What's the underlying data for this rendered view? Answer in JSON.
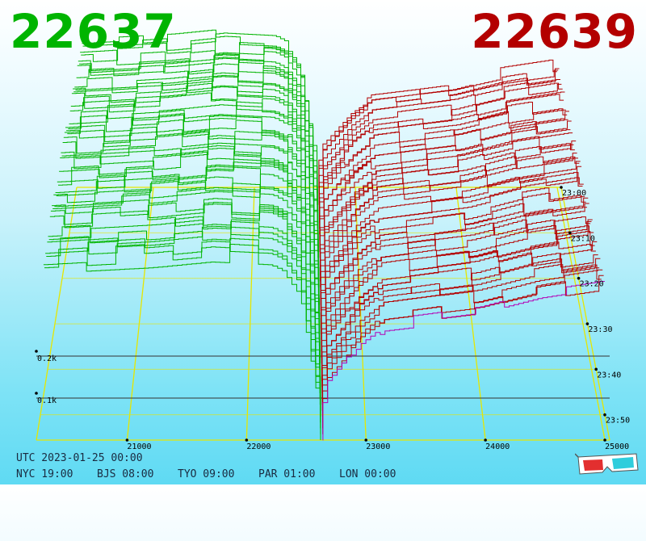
{
  "bid_price": "22637",
  "ask_price": "22639",
  "colors": {
    "bid": "#00b400",
    "ask": "#b30000",
    "grid": "#e6e600",
    "axis": "#000000",
    "recent": "#b400b4"
  },
  "chart_data": {
    "type": "3d-depth-chart",
    "title": "",
    "price_axis": {
      "min": 20240,
      "max": 25040,
      "ticks": [
        21000,
        22000,
        23000,
        24000,
        25000
      ]
    },
    "time_axis": {
      "labels": [
        "23:00",
        "23:10",
        "23:20",
        "23:30",
        "23:40",
        "23:50"
      ]
    },
    "volume_axis": {
      "unit": "k",
      "ticks": [
        0.1,
        0.2
      ],
      "labels": [
        "0.1k",
        "0.2k"
      ]
    },
    "mid_price": 22638,
    "snapshots": 44,
    "bid_profile": {
      "series": "bid",
      "points": [
        [
          20300,
          0.58
        ],
        [
          21200,
          0.6
        ],
        [
          21700,
          0.62
        ],
        [
          22200,
          0.61
        ],
        [
          22300,
          0.59
        ],
        [
          22450,
          0.5
        ],
        [
          22550,
          0.25
        ],
        [
          22637,
          0.0
        ]
      ]
    },
    "ask_profile": {
      "series": "ask",
      "points": [
        [
          22639,
          0.0
        ],
        [
          22700,
          0.18
        ],
        [
          22750,
          0.2
        ],
        [
          23000,
          0.32
        ],
        [
          23200,
          0.38
        ],
        [
          24000,
          0.42
        ],
        [
          24500,
          0.47
        ],
        [
          25000,
          0.5
        ]
      ]
    }
  },
  "utc_line": "UTC 2023-01-25 00:00",
  "timezones": [
    "NYC 19:00",
    "BJS 08:00",
    "TYO 09:00",
    "PAR 01:00",
    "LON 00:00"
  ],
  "glasses_icon": "anaglyph-3d-glasses-icon"
}
